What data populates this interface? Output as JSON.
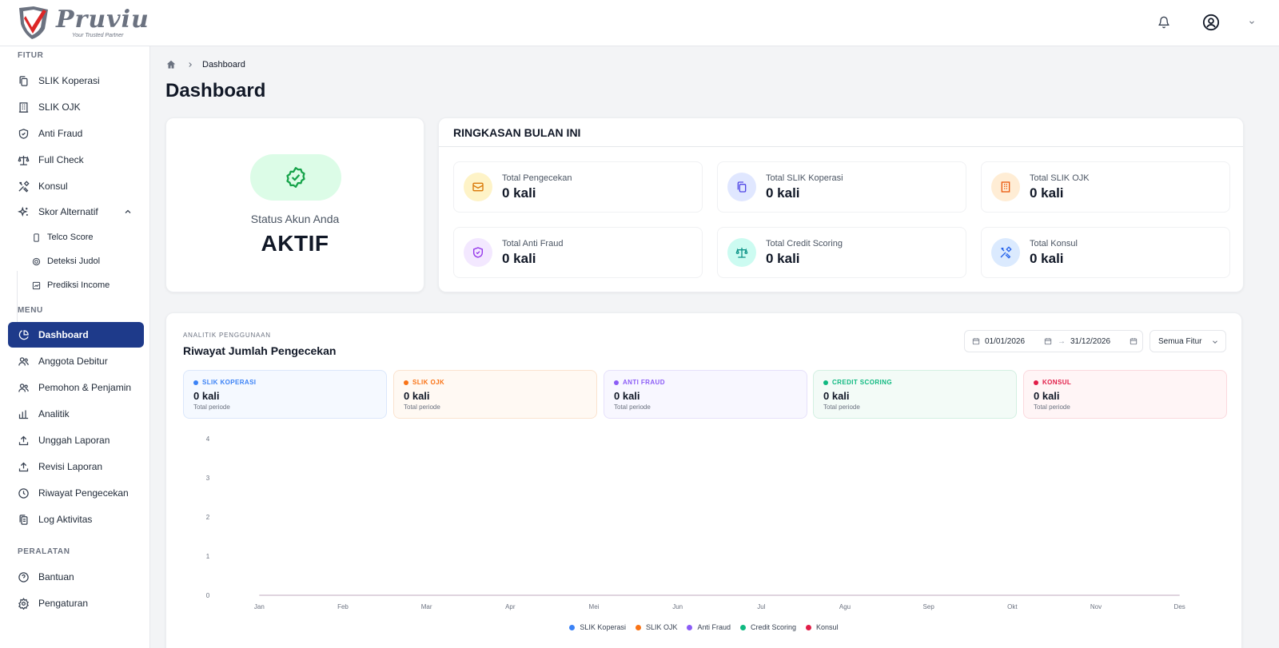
{
  "brand": {
    "name": "Pruviu",
    "tagline": "Your Trusted Partner"
  },
  "sidebar": {
    "sections": {
      "fitur": "FITUR",
      "menu": "MENU",
      "peralatan": "PERALATAN"
    },
    "fitur_items": [
      {
        "label": "SLIK Koperasi",
        "icon": "files-icon"
      },
      {
        "label": "SLIK OJK",
        "icon": "building-icon"
      },
      {
        "label": "Anti Fraud",
        "icon": "shield-icon"
      },
      {
        "label": "Full Check",
        "icon": "scale-icon"
      },
      {
        "label": "Konsul",
        "icon": "tools-icon"
      },
      {
        "label": "Skor Alternatif",
        "icon": "sparkles-icon"
      }
    ],
    "skor_sub_items": [
      {
        "label": "Telco Score",
        "icon": "phone-icon"
      },
      {
        "label": "Deteksi Judol",
        "icon": "target-icon"
      },
      {
        "label": "Prediksi Income",
        "icon": "chart-box-icon"
      }
    ],
    "menu_items": [
      {
        "label": "Dashboard",
        "icon": "pie-chart-icon",
        "active": true
      },
      {
        "label": "Anggota Debitur",
        "icon": "users-icon"
      },
      {
        "label": "Pemohon & Penjamin",
        "icon": "users-icon"
      },
      {
        "label": "Analitik",
        "icon": "bar-chart-icon"
      },
      {
        "label": "Unggah Laporan",
        "icon": "upload-icon"
      },
      {
        "label": "Revisi Laporan",
        "icon": "upload-icon"
      },
      {
        "label": "Riwayat Pengecekan",
        "icon": "clock-icon"
      },
      {
        "label": "Log Aktivitas",
        "icon": "clipboard-icon"
      }
    ],
    "peralatan_items": [
      {
        "label": "Bantuan",
        "icon": "help-circle-icon"
      },
      {
        "label": "Pengaturan",
        "icon": "gear-icon"
      }
    ]
  },
  "breadcrumb": {
    "current": "Dashboard"
  },
  "page_title": "Dashboard",
  "status": {
    "label": "Status Akun Anda",
    "value": "AKTIF",
    "color": "#16a34a"
  },
  "summary": {
    "title": "RINGKASAN BULAN INI",
    "stats": [
      {
        "label": "Total Pengecekan",
        "value": "0 kali",
        "icon": "mail-icon",
        "bg": "#fef3c7",
        "fg": "#d97706"
      },
      {
        "label": "Total SLIK Koperasi",
        "value": "0 kali",
        "icon": "files-icon",
        "bg": "#e0e7ff",
        "fg": "#4f46e5"
      },
      {
        "label": "Total SLIK OJK",
        "value": "0 kali",
        "icon": "building-icon",
        "bg": "#ffedd5",
        "fg": "#ea580c"
      },
      {
        "label": "Total Anti Fraud",
        "value": "0 kali",
        "icon": "shield-icon",
        "bg": "#f3e8ff",
        "fg": "#9333ea"
      },
      {
        "label": "Total Credit Scoring",
        "value": "0 kali",
        "icon": "scale-icon",
        "bg": "#ccfbf1",
        "fg": "#0d9488"
      },
      {
        "label": "Total Konsul",
        "value": "0 kali",
        "icon": "tools-icon",
        "bg": "#dbeafe",
        "fg": "#2563eb"
      }
    ]
  },
  "analytics": {
    "eyebrow": "ANALITIK PENGGUNAAN",
    "title": "Riwayat Jumlah Pengecekan",
    "date_from": "01/01/2026",
    "date_to": "31/12/2026",
    "date_sep": "→",
    "filter": "Semua Fitur",
    "mini_cards": [
      {
        "label": "SLIK KOPERASI",
        "value": "0 kali",
        "sub": "Total periode",
        "color": "#3b82f6",
        "bg": "#f5f9ff",
        "border": "#dbe7fb"
      },
      {
        "label": "SLIK OJK",
        "value": "0 kali",
        "sub": "Total periode",
        "color": "#f97316",
        "bg": "#fff9f3",
        "border": "#fbe3cf"
      },
      {
        "label": "ANTI FRAUD",
        "value": "0 kali",
        "sub": "Total periode",
        "color": "#8b5cf6",
        "bg": "#f8f7ff",
        "border": "#e6e1fb"
      },
      {
        "label": "CREDIT SCORING",
        "value": "0 kali",
        "sub": "Total periode",
        "color": "#10b981",
        "bg": "#f3fbf7",
        "border": "#d3f0e2"
      },
      {
        "label": "KONSUL",
        "value": "0 kali",
        "sub": "Total periode",
        "color": "#e11d48",
        "bg": "#fff5f6",
        "border": "#fbd9de"
      }
    ]
  },
  "chart_data": {
    "type": "line",
    "title": "Riwayat Jumlah Pengecekan",
    "xlabel": "",
    "ylabel": "",
    "categories": [
      "Jan",
      "Feb",
      "Mar",
      "Apr",
      "Mei",
      "Jun",
      "Jul",
      "Agu",
      "Sep",
      "Okt",
      "Nov",
      "Des"
    ],
    "y_ticks": [
      "4",
      "3",
      "2",
      "1",
      "0"
    ],
    "ylim": [
      0,
      4
    ],
    "grid": false,
    "legend_position": "bottom",
    "series": [
      {
        "name": "SLIK Koperasi",
        "color": "#3b82f6",
        "values": [
          0,
          0,
          0,
          0,
          0,
          0,
          0,
          0,
          0,
          0,
          0,
          0
        ]
      },
      {
        "name": "SLIK OJK",
        "color": "#f97316",
        "values": [
          0,
          0,
          0,
          0,
          0,
          0,
          0,
          0,
          0,
          0,
          0,
          0
        ]
      },
      {
        "name": "Anti Fraud",
        "color": "#8b5cf6",
        "values": [
          0,
          0,
          0,
          0,
          0,
          0,
          0,
          0,
          0,
          0,
          0,
          0
        ]
      },
      {
        "name": "Credit Scoring",
        "color": "#10b981",
        "values": [
          0,
          0,
          0,
          0,
          0,
          0,
          0,
          0,
          0,
          0,
          0,
          0
        ]
      },
      {
        "name": "Konsul",
        "color": "#e11d48",
        "values": [
          0,
          0,
          0,
          0,
          0,
          0,
          0,
          0,
          0,
          0,
          0,
          0
        ]
      }
    ]
  }
}
